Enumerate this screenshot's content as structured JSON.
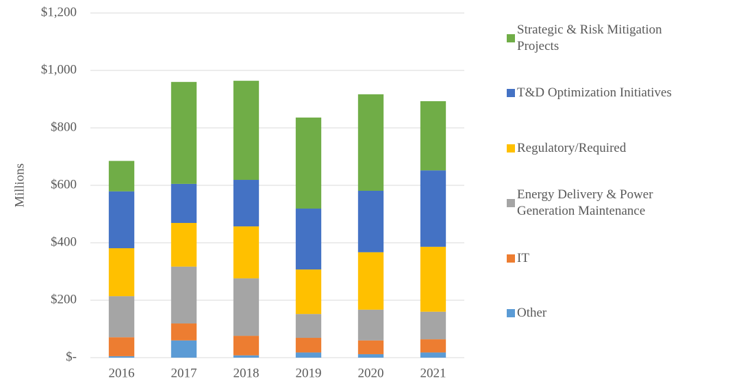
{
  "chart_data": {
    "type": "stacked-bar",
    "y_label": "Millions",
    "categories": [
      "2016",
      "2017",
      "2018",
      "2019",
      "2020",
      "2021"
    ],
    "series": [
      {
        "name": "Other",
        "color": "#5b9bd5",
        "values": [
          5,
          60,
          8,
          18,
          12,
          18
        ]
      },
      {
        "name": "IT",
        "color": "#ed7d31",
        "values": [
          66,
          59,
          68,
          51,
          48,
          46
        ]
      },
      {
        "name": "Energy Delivery & Power Generation Maintenance",
        "color": "#a5a5a5",
        "values": [
          143,
          198,
          200,
          83,
          107,
          96
        ]
      },
      {
        "name": "Regulatory/Required",
        "color": "#ffc000",
        "values": [
          167,
          152,
          181,
          155,
          200,
          226
        ]
      },
      {
        "name": "T&D Optimization Initiatives",
        "color": "#4472c4",
        "values": [
          198,
          136,
          162,
          212,
          214,
          266
        ]
      },
      {
        "name": "Strategic & Risk Mitigation Projects",
        "color": "#70ad47",
        "values": [
          106,
          355,
          345,
          317,
          336,
          241
        ]
      }
    ],
    "ylim": [
      0,
      1200
    ],
    "yticks": [
      {
        "value": 0,
        "label": "$-"
      },
      {
        "value": 200,
        "label": "$200"
      },
      {
        "value": 400,
        "label": "$400"
      },
      {
        "value": 600,
        "label": "$600"
      },
      {
        "value": 800,
        "label": "$800"
      },
      {
        "value": 1000,
        "label": "$1,000"
      },
      {
        "value": 1200,
        "label": "$1,200"
      }
    ],
    "grid": true
  }
}
